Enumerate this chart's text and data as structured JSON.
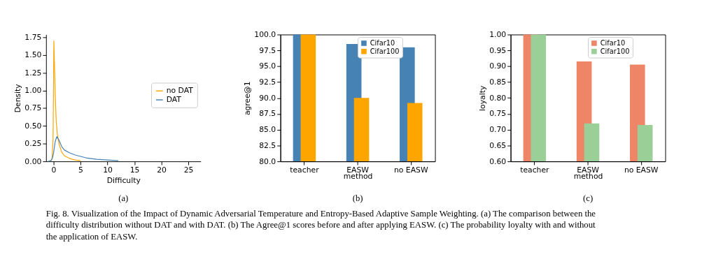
{
  "chart_data": [
    {
      "type": "line",
      "xlabel": "Difficulty",
      "ylabel": "Density",
      "annotations": [
        "(a)"
      ],
      "legend": "right",
      "xlim": [
        -1.4,
        27.3
      ],
      "xticks": [
        0,
        5,
        10,
        15,
        20,
        25
      ],
      "ylim": [
        0,
        1.79
      ],
      "yticks": [
        {
          "value": 0,
          "label": "0.00"
        },
        {
          "value": 0.25,
          "label": "0.25"
        },
        {
          "value": 0.5,
          "label": "0.50"
        },
        {
          "value": 0.75,
          "label": "0.75"
        },
        {
          "value": 1,
          "label": "1.00"
        },
        {
          "value": 1.25,
          "label": "1.25"
        },
        {
          "value": 1.5,
          "label": "1.50"
        },
        {
          "value": 1.75,
          "label": "1.75"
        }
      ],
      "series": [
        {
          "name": "no DAT",
          "color": "#ffa500",
          "x": [
            -0.6,
            -0.3,
            -0.1,
            0,
            0.05,
            0.15,
            0.3,
            0.5,
            0.7,
            1,
            1.5,
            2,
            3,
            4,
            5
          ],
          "values": [
            0,
            0.03,
            0.3,
            1.2,
            1.7,
            1.4,
            0.95,
            0.55,
            0.38,
            0.25,
            0.13,
            0.08,
            0.04,
            0.02,
            0.01
          ]
        },
        {
          "name": "DAT",
          "color": "#4682b4",
          "x": [
            -1,
            -0.5,
            -0.2,
            0,
            0.3,
            0.6,
            1,
            1.5,
            2,
            3,
            4,
            5,
            6,
            8,
            10,
            12
          ],
          "values": [
            0,
            0.01,
            0.05,
            0.12,
            0.28,
            0.35,
            0.3,
            0.21,
            0.16,
            0.12,
            0.09,
            0.07,
            0.05,
            0.03,
            0.02,
            0.01
          ]
        }
      ]
    },
    {
      "type": "bar",
      "xlabel": "method",
      "ylabel": "agree@1",
      "annotations": [
        "(b)"
      ],
      "legend": "top right",
      "categories": [
        "teacher",
        "EASW",
        "no EASW"
      ],
      "ylim": [
        80,
        100
      ],
      "yticks": [
        {
          "value": 80,
          "label": "80.0"
        },
        {
          "value": 82.5,
          "label": "82.5"
        },
        {
          "value": 85,
          "label": "85.0"
        },
        {
          "value": 87.5,
          "label": "87.5"
        },
        {
          "value": 90,
          "label": "90.0"
        },
        {
          "value": 92.5,
          "label": "92.5"
        },
        {
          "value": 95,
          "label": "95.0"
        },
        {
          "value": 97.5,
          "label": "97.5"
        },
        {
          "value": 100,
          "label": "100.0"
        }
      ],
      "series": [
        {
          "name": "Cifar10",
          "color": "#4682b4",
          "values": [
            100,
            98.5,
            98.0
          ]
        },
        {
          "name": "Cifar100",
          "color": "#ffa500",
          "values": [
            100,
            90.0,
            89.2
          ]
        }
      ]
    },
    {
      "type": "bar",
      "xlabel": "method",
      "ylabel": "loyalty",
      "annotations": [
        "(c)",
        "Fig. 8. Visualization of the Impact of Dynamic Adversarial Temperature and Entropy-Based Adaptive Sample Weighting. (a) The comparison between the difficulty distribution without DAT and with DAT. (b) The Agree@1 scores before and after applying EASW. (c) The probability loyalty with and without the application of EASW."
      ],
      "legend": "top right",
      "categories": [
        "teacher",
        "EASW",
        "no EASW"
      ],
      "ylim": [
        0.6,
        1
      ],
      "yticks": [
        {
          "value": 0.6,
          "label": "0.60"
        },
        {
          "value": 0.65,
          "label": "0.65"
        },
        {
          "value": 0.7,
          "label": "0.70"
        },
        {
          "value": 0.75,
          "label": "0.75"
        },
        {
          "value": 0.8,
          "label": "0.80"
        },
        {
          "value": 0.85,
          "label": "0.85"
        },
        {
          "value": 0.9,
          "label": "0.90"
        },
        {
          "value": 0.95,
          "label": "0.95"
        },
        {
          "value": 1,
          "label": "1.00"
        }
      ],
      "series": [
        {
          "name": "Cifar10",
          "color": "#ee8566",
          "values": [
            1,
            0.915,
            0.905
          ]
        },
        {
          "name": "Cifar100",
          "color": "#9bcf98",
          "values": [
            1,
            0.72,
            0.715
          ]
        }
      ]
    }
  ]
}
